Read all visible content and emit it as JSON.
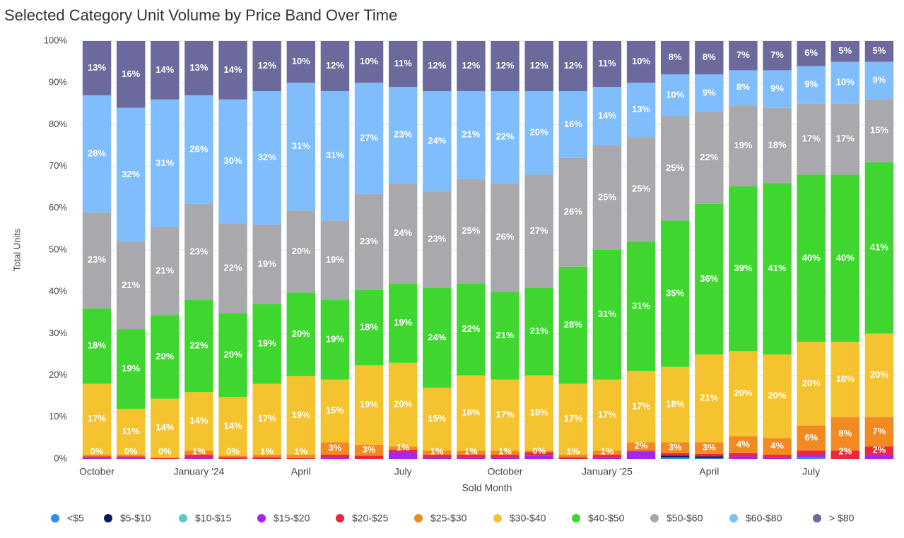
{
  "chart_data": {
    "type": "stacked_bar",
    "title": "Selected Category Unit Volume by Price Band Over Time",
    "x_label": "Sold Month",
    "y_label": "Total Units",
    "categories": [
      "October",
      null,
      null,
      "January '24",
      null,
      null,
      "April",
      null,
      null,
      "July",
      null,
      null,
      "October",
      null,
      null,
      "January '25",
      null,
      null,
      "April",
      null,
      null,
      "July",
      null,
      null
    ],
    "ylim": [
      0,
      100
    ],
    "yticks": [
      {
        "value": 0,
        "label": "0%"
      },
      {
        "value": 10,
        "label": "10%"
      },
      {
        "value": 20,
        "label": "20%"
      },
      {
        "value": 30,
        "label": "30%"
      },
      {
        "value": 40,
        "label": "40%"
      },
      {
        "value": 50,
        "label": "50%"
      },
      {
        "value": 60,
        "label": "60%"
      },
      {
        "value": 70,
        "label": "70%"
      },
      {
        "value": 80,
        "label": "80%"
      },
      {
        "value": 90,
        "label": "90%"
      },
      {
        "value": 100,
        "label": "100%"
      }
    ],
    "grid": true,
    "legend": "bottom",
    "series": [
      {
        "name": "<$5",
        "color": "#2e8fe8",
        "values": [
          0,
          0,
          0,
          0,
          0,
          0,
          0,
          0,
          0,
          0,
          0,
          0,
          0,
          0,
          0,
          0,
          0,
          0.4,
          0.2,
          0,
          0,
          0.4,
          0,
          0
        ]
      },
      {
        "name": "$5-$10",
        "color": "#0b1a5e",
        "values": [
          0,
          0,
          0,
          0,
          0,
          0,
          0,
          0,
          0,
          0,
          0,
          0,
          0,
          0,
          0,
          0,
          0,
          0.4,
          0.4,
          0,
          0,
          0,
          0,
          0
        ]
      },
      {
        "name": "$10-$15",
        "color": "#5cc9c9",
        "values": [
          0,
          0,
          0,
          0,
          0,
          0,
          0,
          0,
          0,
          0,
          0,
          0,
          0,
          0,
          0,
          0,
          0,
          0,
          0,
          0,
          0,
          0,
          0,
          0
        ]
      },
      {
        "name": "$15-$20",
        "color": "#a425ee",
        "values": [
          0.3,
          0.3,
          0,
          0.5,
          0,
          0,
          0,
          0.4,
          0,
          1.6,
          0.5,
          0.4,
          0.4,
          0.8,
          0,
          0.4,
          1.8,
          0,
          0,
          0.6,
          0.4,
          0.6,
          0,
          1
        ]
      },
      {
        "name": "$20-$25",
        "color": "#e9283c",
        "values": [
          0.3,
          0.3,
          0.2,
          0.5,
          0.4,
          0.4,
          0.2,
          0.6,
          0.8,
          0.6,
          0.5,
          0.6,
          0.6,
          0.8,
          0.4,
          0.6,
          0.2,
          0.6,
          0.6,
          0.8,
          0.6,
          1,
          2,
          2
        ],
        "value_labels": [
          null,
          null,
          null,
          null,
          null,
          null,
          null,
          null,
          null,
          null,
          null,
          null,
          null,
          null,
          null,
          null,
          null,
          null,
          null,
          null,
          null,
          null,
          "2%",
          "2%"
        ]
      },
      {
        "name": "$25-$30",
        "color": "#f28a24",
        "values": [
          0.4,
          0.4,
          0.2,
          1,
          0.4,
          0.6,
          0.8,
          3,
          2.6,
          0.8,
          1,
          1,
          1,
          0.4,
          0.6,
          1,
          2,
          2.6,
          2.8,
          4,
          4,
          6,
          8,
          7
        ],
        "value_labels": [
          "0%",
          "0%",
          "0%",
          "1%",
          "0%",
          "1%",
          "1%",
          "3%",
          "3%",
          "1%",
          "1%",
          "1%",
          "1%",
          "0%",
          "1%",
          "1%",
          "2%",
          "3%",
          "3%",
          "4%",
          "4%",
          "6%",
          "8%",
          "7%"
        ]
      },
      {
        "name": "$30-$40",
        "color": "#f5c32f",
        "values": [
          17,
          11,
          14,
          14,
          14,
          17,
          18.8,
          15,
          19,
          20,
          15,
          18,
          17,
          18,
          17,
          17,
          17,
          18,
          21,
          20.4,
          20,
          20,
          18,
          20
        ],
        "value_labels": [
          "17%",
          "11%",
          "14%",
          "14%",
          "14%",
          "17%",
          "19%",
          "15%",
          "19%",
          "20%",
          "15%",
          "18%",
          "17%",
          "18%",
          "17%",
          "17%",
          "17%",
          "18%",
          "21%",
          "20%",
          "20%",
          "20%",
          "18%",
          "20%"
        ]
      },
      {
        "name": "$40-$50",
        "color": "#3ed62f",
        "values": [
          18,
          19,
          20,
          22,
          20,
          19,
          20,
          19,
          18,
          19,
          24,
          22,
          21,
          21,
          28,
          31,
          31,
          35,
          36,
          39.4,
          41,
          40,
          40,
          41
        ],
        "value_labels": [
          "18%",
          "19%",
          "20%",
          "22%",
          "20%",
          "19%",
          "20%",
          "19%",
          "18%",
          "19%",
          "24%",
          "22%",
          "21%",
          "21%",
          "28%",
          "31%",
          "31%",
          "35%",
          "36%",
          "39%",
          "41%",
          "40%",
          "40%",
          "41%"
        ]
      },
      {
        "name": "$50-$60",
        "color": "#a8a8ad",
        "values": [
          23,
          21,
          21,
          23,
          21.6,
          19,
          19.6,
          19,
          23,
          24,
          23,
          25,
          26,
          27,
          26,
          25,
          25,
          25,
          22,
          19.4,
          18,
          17,
          17,
          15
        ],
        "value_labels": [
          "23%",
          "21%",
          "21%",
          "23%",
          "22%",
          "19%",
          "20%",
          "19%",
          "23%",
          "24%",
          "23%",
          "25%",
          "26%",
          "27%",
          "26%",
          "25%",
          "25%",
          "25%",
          "22%",
          "19%",
          "18%",
          "17%",
          "17%",
          "15%"
        ]
      },
      {
        "name": "$60-$80",
        "color": "#80bdfd",
        "values": [
          28,
          32,
          30.6,
          26,
          29.6,
          32,
          30.6,
          31,
          26.6,
          23,
          24,
          21,
          22,
          20,
          16,
          14,
          13,
          10,
          9,
          8.4,
          9,
          9,
          10,
          9
        ],
        "value_labels": [
          "28%",
          "32%",
          "31%",
          "26%",
          "30%",
          "32%",
          "31%",
          "31%",
          "27%",
          "23%",
          "24%",
          "21%",
          "22%",
          "20%",
          "16%",
          "14%",
          "13%",
          "10%",
          "9%",
          "8%",
          "9%",
          "9%",
          "10%",
          "9%"
        ]
      },
      {
        "name": "> $80",
        "color": "#6c6a9d",
        "values": [
          13,
          16,
          14,
          13,
          14,
          12,
          10,
          12,
          10,
          11,
          12,
          12,
          12,
          12,
          12,
          11,
          10,
          8,
          8,
          7,
          7,
          6,
          5,
          5
        ],
        "value_labels": [
          "13%",
          "16%",
          "14%",
          "13%",
          "14%",
          "12%",
          "10%",
          "12%",
          "10%",
          "11%",
          "12%",
          "12%",
          "12%",
          "12%",
          "12%",
          "11%",
          "10%",
          "8%",
          "8%",
          "7%",
          "7%",
          "6%",
          "5%",
          "5%"
        ]
      }
    ]
  }
}
